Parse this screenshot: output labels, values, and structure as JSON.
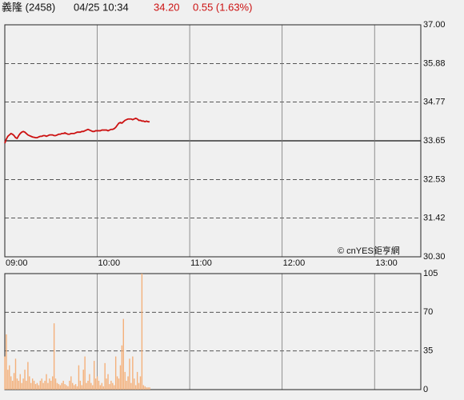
{
  "header": {
    "name": "義隆 (2458)",
    "datetime": "04/25 10:34",
    "price": "34.20",
    "change": "0.55 (1.63%)"
  },
  "chart_data": [
    {
      "type": "line",
      "annotation": "© cnYES鉅亨網",
      "color": "#cc1111",
      "x": [
        "09:00",
        "09:01",
        "09:02",
        "09:03",
        "09:04",
        "09:05",
        "09:06",
        "09:07",
        "09:08",
        "09:09",
        "09:10",
        "09:11",
        "09:12",
        "09:13",
        "09:14",
        "09:15",
        "09:16",
        "09:17",
        "09:18",
        "09:19",
        "09:20",
        "09:21",
        "09:22",
        "09:23",
        "09:24",
        "09:25",
        "09:26",
        "09:27",
        "09:28",
        "09:29",
        "09:30",
        "09:31",
        "09:32",
        "09:33",
        "09:34",
        "09:35",
        "09:36",
        "09:37",
        "09:38",
        "09:39",
        "09:40",
        "09:41",
        "09:42",
        "09:43",
        "09:44",
        "09:45",
        "09:46",
        "09:47",
        "09:48",
        "09:49",
        "09:50",
        "09:51",
        "09:52",
        "09:53",
        "09:54",
        "09:55",
        "09:56",
        "09:57",
        "09:58",
        "09:59",
        "10:00",
        "10:01",
        "10:02",
        "10:03",
        "10:04",
        "10:05",
        "10:06",
        "10:07",
        "10:08",
        "10:09",
        "10:10",
        "10:11",
        "10:12",
        "10:13",
        "10:14",
        "10:15",
        "10:16",
        "10:17",
        "10:18",
        "10:19",
        "10:20",
        "10:21",
        "10:22",
        "10:23",
        "10:24",
        "10:25",
        "10:26",
        "10:27",
        "10:28",
        "10:29",
        "10:30",
        "10:31",
        "10:32",
        "10:33",
        "10:34"
      ],
      "values": [
        33.58,
        33.7,
        33.78,
        33.82,
        33.86,
        33.84,
        33.8,
        33.74,
        33.72,
        33.8,
        33.86,
        33.9,
        33.92,
        33.9,
        33.86,
        33.82,
        33.8,
        33.78,
        33.76,
        33.75,
        33.74,
        33.74,
        33.76,
        33.78,
        33.78,
        33.8,
        33.8,
        33.78,
        33.8,
        33.82,
        33.82,
        33.82,
        33.8,
        33.8,
        33.82,
        33.84,
        33.84,
        33.86,
        33.86,
        33.88,
        33.86,
        33.84,
        33.84,
        33.86,
        33.86,
        33.86,
        33.88,
        33.9,
        33.9,
        33.9,
        33.92,
        33.92,
        33.94,
        33.96,
        33.98,
        33.96,
        33.94,
        33.92,
        33.92,
        33.94,
        33.94,
        33.94,
        33.94,
        33.96,
        33.96,
        33.96,
        33.96,
        33.94,
        33.96,
        33.98,
        33.98,
        34.0,
        34.04,
        34.1,
        34.16,
        34.18,
        34.16,
        34.2,
        34.24,
        34.26,
        34.28,
        34.28,
        34.28,
        34.26,
        34.28,
        34.3,
        34.28,
        34.24,
        34.24,
        34.22,
        34.22,
        34.2,
        34.22,
        34.2,
        34.2
      ],
      "xlim": [
        "09:00",
        "13:30"
      ],
      "xticks": [
        "09:00",
        "10:00",
        "11:00",
        "12:00",
        "13:00"
      ],
      "ylim": [
        30.3,
        37.0
      ],
      "yticks": [
        {
          "value": 30.3,
          "label": "30.30"
        },
        31.42,
        32.53,
        33.65,
        34.77,
        35.88,
        {
          "value": 37.0,
          "label": "37.00"
        }
      ],
      "reference": 33.65,
      "grid": true
    },
    {
      "type": "bar",
      "color": "#f4b07a",
      "x": [
        "09:00",
        "09:01",
        "09:02",
        "09:03",
        "09:04",
        "09:05",
        "09:06",
        "09:07",
        "09:08",
        "09:09",
        "09:10",
        "09:11",
        "09:12",
        "09:13",
        "09:14",
        "09:15",
        "09:16",
        "09:17",
        "09:18",
        "09:19",
        "09:20",
        "09:21",
        "09:22",
        "09:23",
        "09:24",
        "09:25",
        "09:26",
        "09:27",
        "09:28",
        "09:29",
        "09:30",
        "09:31",
        "09:32",
        "09:33",
        "09:34",
        "09:35",
        "09:36",
        "09:37",
        "09:38",
        "09:39",
        "09:40",
        "09:41",
        "09:42",
        "09:43",
        "09:44",
        "09:45",
        "09:46",
        "09:47",
        "09:48",
        "09:49",
        "09:50",
        "09:51",
        "09:52",
        "09:53",
        "09:54",
        "09:55",
        "09:56",
        "09:57",
        "09:58",
        "09:59",
        "10:00",
        "10:01",
        "10:02",
        "10:03",
        "10:04",
        "10:05",
        "10:06",
        "10:07",
        "10:08",
        "10:09",
        "10:10",
        "10:11",
        "10:12",
        "10:13",
        "10:14",
        "10:15",
        "10:16",
        "10:17",
        "10:18",
        "10:19",
        "10:20",
        "10:21",
        "10:22",
        "10:23",
        "10:24",
        "10:25",
        "10:26",
        "10:27",
        "10:28",
        "10:29",
        "10:30",
        "10:31",
        "10:32",
        "10:33",
        "10:34"
      ],
      "values": [
        30,
        50,
        18,
        22,
        12,
        8,
        15,
        28,
        10,
        8,
        14,
        6,
        10,
        18,
        8,
        25,
        12,
        6,
        10,
        8,
        5,
        6,
        4,
        8,
        10,
        6,
        8,
        14,
        6,
        10,
        8,
        12,
        60,
        10,
        6,
        5,
        4,
        6,
        8,
        5,
        4,
        3,
        8,
        12,
        6,
        4,
        5,
        3,
        22,
        8,
        4,
        18,
        30,
        6,
        8,
        14,
        6,
        4,
        26,
        10,
        12,
        8,
        4,
        6,
        3,
        24,
        10,
        14,
        5,
        8,
        6,
        4,
        30,
        12,
        10,
        22,
        40,
        64,
        16,
        8,
        12,
        28,
        6,
        30,
        10,
        4,
        16,
        6,
        12,
        105,
        4,
        3,
        2,
        2,
        2
      ],
      "xlim": [
        "09:00",
        "13:30"
      ],
      "xticks": [
        "09:00",
        "10:00",
        "11:00",
        "12:00",
        "13:00"
      ],
      "ylim": [
        0,
        105
      ],
      "yticks": [
        0,
        35,
        70,
        105
      ],
      "grid": true
    }
  ]
}
